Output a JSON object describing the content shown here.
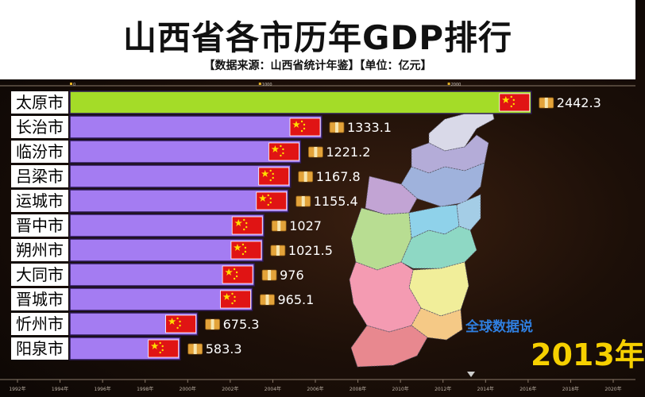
{
  "title": "山西省各市历年GDP排行",
  "subtitle": "【数据来源：山西省统计年鉴】【单位：亿元】",
  "watermark": "全球数据说",
  "year_label": "2013年",
  "chart_data": {
    "type": "bar",
    "orientation": "horizontal",
    "title": "山西省各市历年GDP排行",
    "categories": [
      "太原市",
      "长治市",
      "临汾市",
      "吕梁市",
      "运城市",
      "晋中市",
      "朔州市",
      "大同市",
      "晋城市",
      "忻州市",
      "阳泉市"
    ],
    "values": [
      2442.3,
      1333.1,
      1221.2,
      1167.8,
      1155.4,
      1027,
      1021.5,
      976,
      965.1,
      675.3,
      583.3
    ],
    "value_labels": [
      "2442.3",
      "1333.1",
      "1221.2",
      "1167.8",
      "1155.4",
      "1027",
      "1021.5",
      "976",
      "965.1",
      "675.3",
      "583.3"
    ],
    "top_axis_ticks": [
      "0",
      "1000",
      "2000"
    ],
    "timeline_ticks": [
      "1992年",
      "1994年",
      "1996年",
      "1998年",
      "2000年",
      "2002年",
      "2004年",
      "2006年",
      "2008年",
      "2010年",
      "2012年",
      "2014年",
      "2016年",
      "2018年",
      "2020年"
    ],
    "current_year": "2013年",
    "colors": {
      "top_bar": "#a4dc28",
      "bars": "#a47cf2",
      "bar_border": "#2c1a55",
      "label_bg": "#ffffff",
      "value_text": "#ffffff",
      "flag": "#e01414",
      "flag_star": "#ffde00",
      "year_text": "#f6d000",
      "watermark": "#2f7fe0"
    },
    "map_region_colors": [
      "#d9d9e8",
      "#b4acd8",
      "#9fb2dc",
      "#c2a4d4",
      "#b8dd92",
      "#8fd2ea",
      "#a4cde6",
      "#8ed8c4",
      "#f1ee9a",
      "#f49bb2",
      "#f5c986",
      "#e8888f"
    ]
  }
}
